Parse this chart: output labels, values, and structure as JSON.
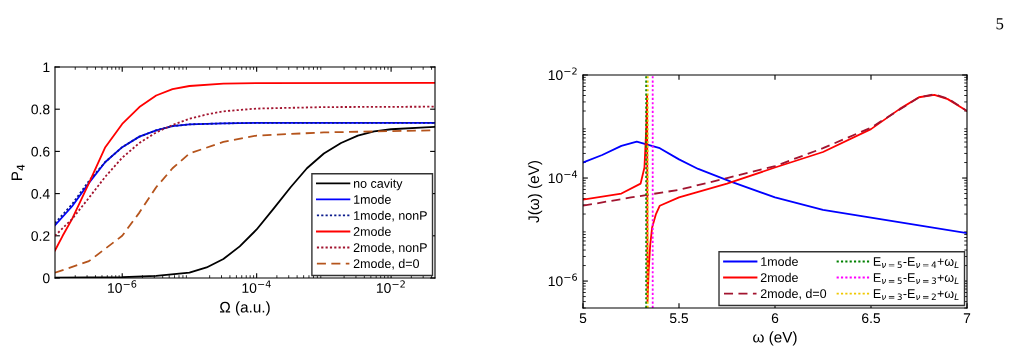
{
  "chart_data": [
    {
      "type": "line",
      "xlabel": "Ω (a.u.)",
      "ylabel": "P$_{4}$",
      "log": "x",
      "xlim": [
        1e-07,
        0.045
      ],
      "ylim": [
        0,
        1
      ],
      "xticks": [
        {
          "value": 1e-06,
          "label": "10$^{−6}$"
        },
        {
          "value": 0.0001,
          "label": "10$^{−4}$"
        },
        {
          "value": 0.01,
          "label": "10$^{−2}$"
        }
      ],
      "yticks": [
        0,
        0.2,
        0.4,
        0.6,
        0.8,
        1
      ],
      "grid": false,
      "legend": "bottom right",
      "series": [
        {
          "name": "no cavity",
          "color": "#000000",
          "line_style": "solid",
          "x": [
            1e-07,
            1e-06,
            3.2e-06,
            1e-05,
            1.8e-05,
            3.2e-05,
            5.6e-05,
            0.0001,
            0.00018,
            0.00032,
            0.00056,
            0.001,
            0.0018,
            0.0032,
            0.0056,
            0.01,
            0.032,
            0.045
          ],
          "values": [
            0.002,
            0.004,
            0.01,
            0.025,
            0.05,
            0.09,
            0.15,
            0.23,
            0.33,
            0.43,
            0.52,
            0.59,
            0.64,
            0.675,
            0.695,
            0.705,
            0.714,
            0.716
          ]
        },
        {
          "name": "1mode",
          "color": "#0000ff",
          "line_style": "solid",
          "x": [
            1e-07,
            1.8e-07,
            3.2e-07,
            5.6e-07,
            1e-06,
            1.8e-06,
            3.2e-06,
            5.6e-06,
            1e-05,
            3.2e-05,
            0.0001,
            0.045
          ],
          "values": [
            0.25,
            0.34,
            0.45,
            0.55,
            0.62,
            0.67,
            0.7,
            0.72,
            0.728,
            0.733,
            0.735,
            0.735
          ]
        },
        {
          "name": "1mode, nonP",
          "color": "#0a1a8c",
          "line_style": "dotted",
          "x": [
            1e-07,
            1.8e-07,
            3.2e-07,
            5.6e-07,
            1e-06,
            1.8e-06,
            3.2e-06,
            5.6e-06,
            1e-05,
            3.2e-05,
            0.0001,
            0.045
          ],
          "values": [
            0.26,
            0.35,
            0.46,
            0.55,
            0.62,
            0.67,
            0.7,
            0.72,
            0.728,
            0.733,
            0.735,
            0.735
          ]
        },
        {
          "name": "2mode",
          "color": "#ff0000",
          "line_style": "solid",
          "x": [
            1e-07,
            1.3e-07,
            1.8e-07,
            3.2e-07,
            5.6e-07,
            1e-06,
            1.8e-06,
            3.2e-06,
            5.6e-06,
            1e-05,
            3.2e-05,
            0.0001,
            0.045
          ],
          "values": [
            0.13,
            0.2,
            0.28,
            0.45,
            0.62,
            0.73,
            0.81,
            0.865,
            0.895,
            0.91,
            0.921,
            0.924,
            0.925
          ]
        },
        {
          "name": "2mode, nonP",
          "color": "#a2142f",
          "line_style": "dotted",
          "x": [
            1e-07,
            1.8e-07,
            3.2e-07,
            5.6e-07,
            1e-06,
            1.8e-06,
            3.2e-06,
            5.6e-06,
            1e-05,
            1.8e-05,
            3.2e-05,
            0.0001,
            0.001,
            0.045
          ],
          "values": [
            0.2,
            0.28,
            0.38,
            0.48,
            0.57,
            0.64,
            0.69,
            0.725,
            0.755,
            0.775,
            0.79,
            0.803,
            0.81,
            0.812
          ]
        },
        {
          "name": "2mode, d=0",
          "color": "#b5541c",
          "line_style": "dashed",
          "x": [
            1e-07,
            3.2e-07,
            1e-06,
            1.8e-06,
            3.2e-06,
            5.6e-06,
            1e-05,
            3.2e-05,
            0.0001,
            0.001,
            0.045
          ],
          "values": [
            0.025,
            0.08,
            0.2,
            0.31,
            0.43,
            0.52,
            0.59,
            0.645,
            0.675,
            0.69,
            0.7
          ]
        }
      ]
    },
    {
      "type": "line",
      "xlabel": "ω (eV)",
      "ylabel": "J(ω) (eV)",
      "log": "y",
      "xlim": [
        5,
        7
      ],
      "ylim": [
        3e-07,
        0.01
      ],
      "xticks": [
        5,
        5.5,
        6,
        6.5,
        7
      ],
      "yticks": [
        {
          "value": 1e-06,
          "label": "10$^{−6}$"
        },
        {
          "value": 0.0001,
          "label": "10$^{−4}$"
        },
        {
          "value": 0.01,
          "label": "10$^{−2}$"
        }
      ],
      "grid": false,
      "legend": "bottom right",
      "annotations": [
        "5"
      ],
      "series": [
        {
          "name": "1mode",
          "color": "#0000ff",
          "line_style": "solid",
          "x": [
            5.0,
            5.1,
            5.2,
            5.28,
            5.4,
            5.5,
            5.6,
            5.77,
            6.0,
            6.25,
            6.5,
            6.75,
            7.0
          ],
          "values": [
            0.0002,
            0.00028,
            0.00042,
            0.00051,
            0.00038,
            0.00023,
            0.00015,
            8.5e-05,
            4.2e-05,
            2.4e-05,
            1.7e-05,
            1.2e-05,
            8.5e-06
          ]
        },
        {
          "name": "2mode",
          "color": "#ff0000",
          "line_style": "solid",
          "x": [
            5.0,
            5.2,
            5.3,
            5.32,
            5.33,
            5.334,
            5.336,
            5.342,
            5.35,
            5.36,
            5.38,
            5.4,
            5.5,
            5.75,
            6.0,
            6.25,
            6.5,
            6.65,
            6.75,
            6.83,
            6.9,
            7.0
          ],
          "values": [
            3.8e-05,
            5e-05,
            7.8e-05,
            0.00016,
            0.001,
            0.0041,
            4e-07,
            1.6e-06,
            5e-06,
            1.1e-05,
            2e-05,
            2.9e-05,
            4.2e-05,
            7.8e-05,
            0.00016,
            0.00032,
            0.00089,
            0.0022,
            0.0037,
            0.0041,
            0.0034,
            0.002
          ]
        },
        {
          "name": "2mode, d=0",
          "color": "#a2142f",
          "line_style": "dashed",
          "x": [
            5.0,
            5.25,
            5.5,
            5.75,
            6.0,
            6.25,
            6.5,
            6.75,
            6.83,
            6.9,
            7.0
          ],
          "values": [
            2.9e-05,
            4.2e-05,
            5.9e-05,
            0.0001,
            0.00017,
            0.00038,
            0.00095,
            0.0037,
            0.0042,
            0.0035,
            0.002
          ]
        },
        {
          "name": "E$_{ν=5}$-E$_{ν=4}$+ω$_{L}$",
          "color": "#008000",
          "line_style": "dotted",
          "x": [
            5.329,
            5.329
          ],
          "values": [
            3e-07,
            0.01
          ]
        },
        {
          "name": "E$_{ν=5}$-E$_{ν=3}$+ω$_{L}$",
          "color": "#ff00ff",
          "line_style": "dotted",
          "x": [
            5.363,
            5.363
          ],
          "values": [
            3e-07,
            0.01
          ]
        },
        {
          "name": "E$_{ν=3}$-E$_{ν=2}$+ω$_{L}$",
          "color": "#f0c800",
          "line_style": "dotted",
          "x": [
            5.337,
            5.337
          ],
          "values": [
            3e-07,
            0.01
          ]
        }
      ]
    }
  ]
}
